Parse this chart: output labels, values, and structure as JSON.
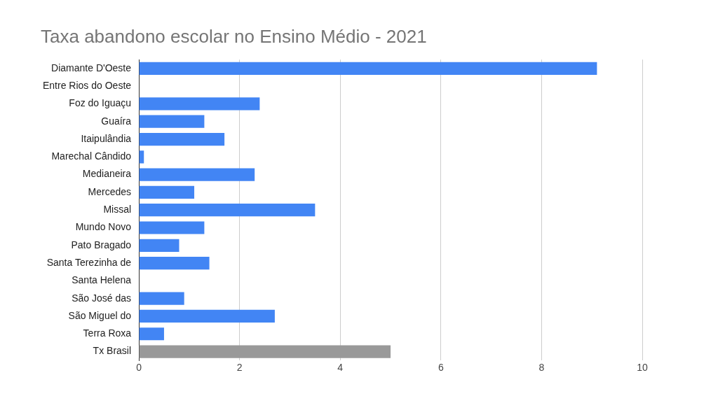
{
  "chart_data": {
    "type": "bar",
    "orientation": "horizontal",
    "title": "Taxa abandono escolar no Ensino Médio - 2021",
    "categories": [
      "Diamante D'Oeste",
      "Entre Rios do Oeste",
      "Foz do Iguaçu",
      "Guaíra",
      "Itaipulândia",
      "Marechal Cândido",
      "Medianeira",
      "Mercedes",
      "Missal",
      "Mundo Novo",
      "Pato Bragado",
      "Santa Terezinha de",
      "Santa Helena",
      "São José das",
      "São Miguel do",
      "Terra Roxa",
      "Tx Brasil"
    ],
    "values": [
      9.1,
      0,
      2.4,
      1.3,
      1.7,
      0.1,
      2.3,
      1.1,
      3.5,
      1.3,
      0.8,
      1.4,
      0,
      0.9,
      2.7,
      0.5,
      5.0
    ],
    "colors": [
      "#4285f4",
      "#4285f4",
      "#4285f4",
      "#4285f4",
      "#4285f4",
      "#4285f4",
      "#4285f4",
      "#4285f4",
      "#4285f4",
      "#4285f4",
      "#4285f4",
      "#4285f4",
      "#4285f4",
      "#4285f4",
      "#4285f4",
      "#4285f4",
      "#999999"
    ],
    "xlim": [
      0,
      10
    ],
    "xticks": [
      0,
      2,
      4,
      6,
      8,
      10
    ],
    "grid": "x",
    "legend": false
  }
}
